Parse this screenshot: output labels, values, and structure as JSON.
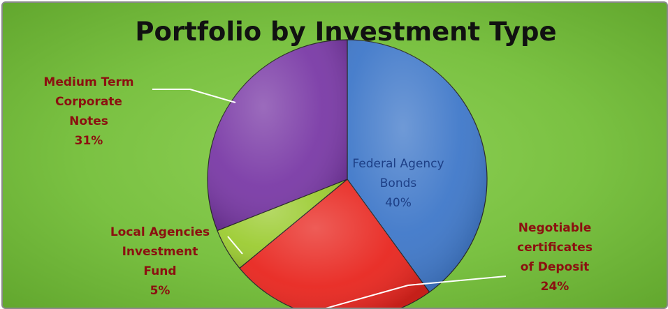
{
  "chart_data": {
    "type": "pie",
    "title": "Portfolio by Investment Type",
    "slices": [
      {
        "label": [
          "Federal Agency",
          "Bonds"
        ],
        "percent_label": "40%",
        "value": 40,
        "color": "#3f78c9"
      },
      {
        "label": [
          "Negotiable",
          "certificates",
          "of Deposit"
        ],
        "percent_label": "24%",
        "value": 24,
        "color": "#e8261f"
      },
      {
        "label": [
          "Local Agencies",
          "Investment",
          "Fund"
        ],
        "percent_label": "5%",
        "value": 5,
        "color": "#9ccc32"
      },
      {
        "label": [
          "Medium Term",
          "Corporate",
          "Notes"
        ],
        "percent_label": "31%",
        "value": 31,
        "color": "#7a3aa6"
      }
    ]
  }
}
